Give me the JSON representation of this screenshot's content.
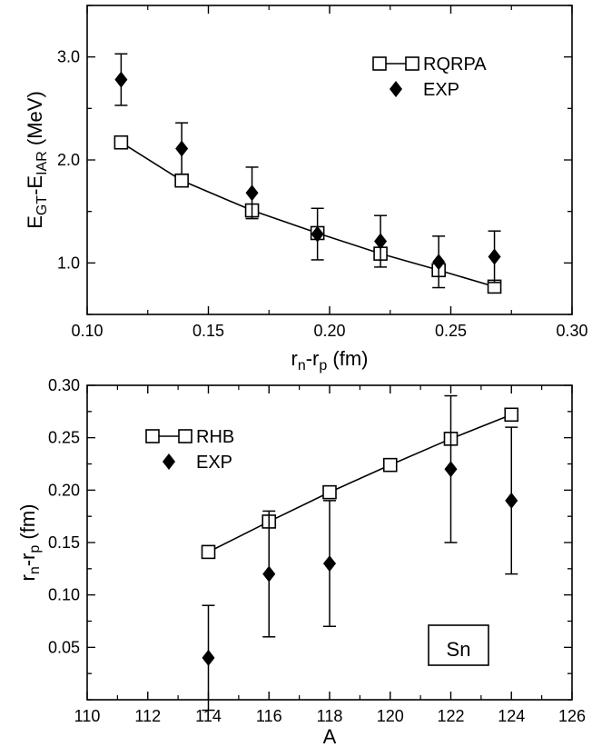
{
  "chart_data": [
    {
      "type": "scatter",
      "title": "",
      "xlabel": {
        "main": "r",
        "sub1": "n",
        "mid": "-r",
        "sub2": "p",
        "tail": " (fm)"
      },
      "ylabel": {
        "pre": "E",
        "sub1": "GT",
        "mid": "-E",
        "sub2": "IAR",
        "tail": " (MeV)"
      },
      "xlim": [
        0.1,
        0.3
      ],
      "ylim": [
        0.5,
        3.5
      ],
      "xticks": [
        0.1,
        0.15,
        0.2,
        0.25,
        0.3
      ],
      "xtick_labels": [
        "0.10",
        "0.15",
        "0.20",
        "0.25",
        "0.30"
      ],
      "yticks": [
        1.0,
        2.0,
        3.0
      ],
      "ytick_labels": [
        "1.0",
        "2.0",
        "3.0"
      ],
      "legend": "top-right",
      "grid": false,
      "series": [
        {
          "name": "RQRPA",
          "marker": "open-square",
          "line": true,
          "x": [
            0.114,
            0.139,
            0.168,
            0.195,
            0.221,
            0.245,
            0.268
          ],
          "y": [
            2.17,
            1.8,
            1.51,
            1.29,
            1.09,
            0.93,
            0.77
          ]
        },
        {
          "name": "EXP",
          "marker": "filled-diamond",
          "line": false,
          "x": [
            0.114,
            0.139,
            0.168,
            0.195,
            0.221,
            0.245,
            0.268
          ],
          "y": [
            2.78,
            2.11,
            1.68,
            1.28,
            1.21,
            1.01,
            1.06
          ],
          "yerr": [
            0.25,
            0.25,
            0.25,
            0.25,
            0.25,
            0.25,
            0.25
          ]
        }
      ]
    },
    {
      "type": "scatter",
      "title": "",
      "xlabel": {
        "main": "A"
      },
      "ylabel": {
        "pre": "r",
        "sub1": "n",
        "mid": "-r",
        "sub2": "p",
        "tail": " (fm)"
      },
      "xlim": [
        110,
        126
      ],
      "ylim": [
        0,
        0.3
      ],
      "xticks": [
        110,
        112,
        114,
        116,
        118,
        120,
        122,
        124,
        126
      ],
      "xtick_labels": [
        "110",
        "112",
        "114",
        "116",
        "118",
        "120",
        "122",
        "124",
        "126"
      ],
      "yticks": [
        0.05,
        0.1,
        0.15,
        0.2,
        0.25,
        0.3
      ],
      "ytick_labels": [
        "0.05",
        "0.10",
        "0.15",
        "0.20",
        "0.25",
        "0.30"
      ],
      "legend": "top-left",
      "grid": false,
      "annotation": "Sn",
      "series": [
        {
          "name": "RHB",
          "marker": "open-square",
          "line": true,
          "x": [
            114,
            116,
            118,
            120,
            122,
            124
          ],
          "y": [
            0.141,
            0.17,
            0.198,
            0.224,
            0.249,
            0.272
          ]
        },
        {
          "name": "EXP",
          "marker": "filled-diamond",
          "line": false,
          "x": [
            114,
            116,
            118,
            120,
            122,
            124
          ],
          "y": [
            0.04,
            0.12,
            0.13,
            null,
            0.22,
            0.19
          ],
          "yerr": [
            0.05,
            0.06,
            0.06,
            null,
            0.07,
            0.07
          ]
        }
      ]
    }
  ]
}
